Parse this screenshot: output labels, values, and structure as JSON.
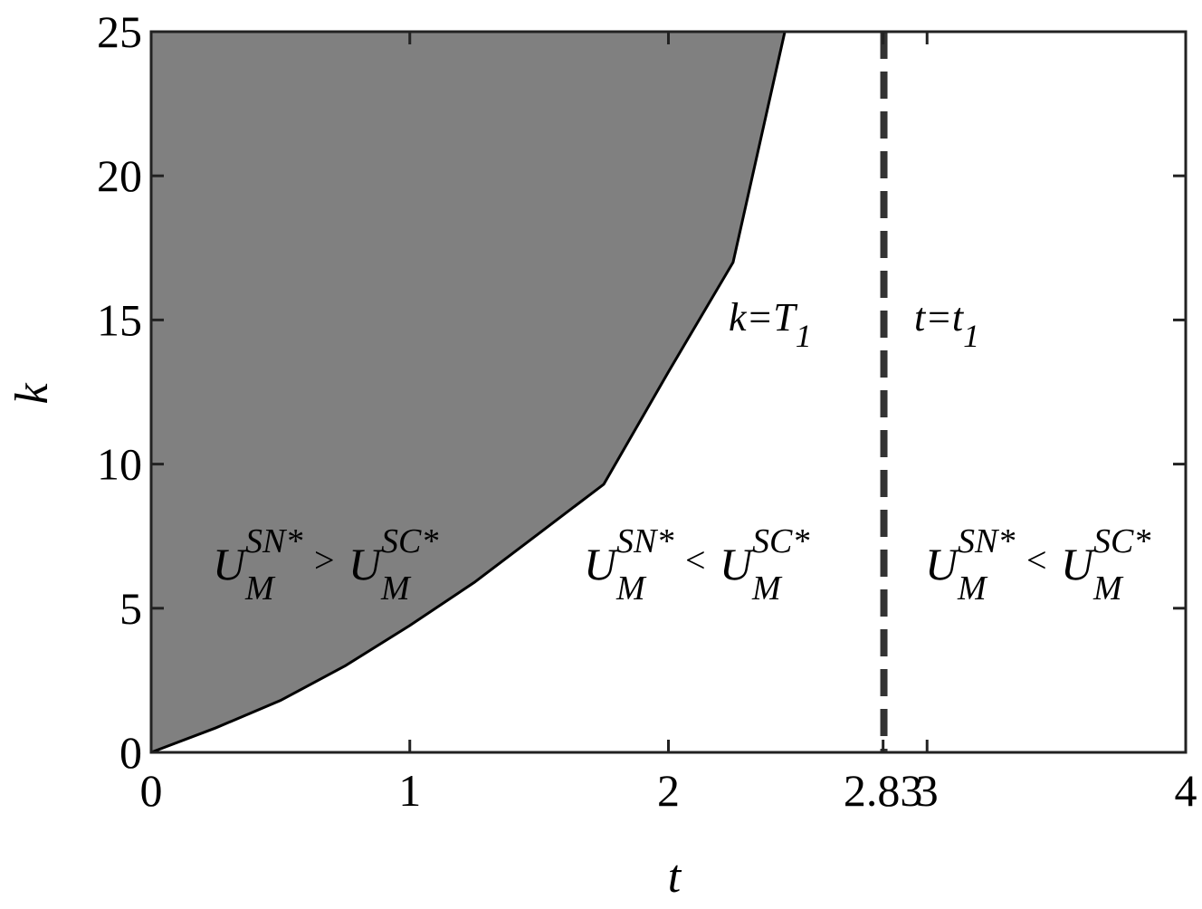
{
  "chart_data": {
    "type": "area",
    "xlabel": "t",
    "ylabel": "k",
    "xlim": [
      0,
      4
    ],
    "ylim": [
      0,
      25
    ],
    "xticks": [
      0,
      1,
      2,
      2.83,
      3,
      4
    ],
    "yticks": [
      0,
      5,
      10,
      15,
      20,
      25
    ],
    "series": [
      {
        "name": "k=T1",
        "color": "#808080",
        "line_color": "#000000",
        "x": [
          0,
          0.25,
          0.5,
          0.75,
          1,
          1.25,
          1.5,
          1.75,
          2,
          2.25,
          2.45
        ],
        "values": [
          0,
          0.85,
          1.8,
          3.0,
          4.4,
          5.9,
          7.6,
          9.3,
          13.2,
          17.0,
          25
        ]
      }
    ],
    "vertical_line": {
      "x": 2.833,
      "color": "#333333",
      "dashed": true
    },
    "annotations": [
      {
        "text": "k=T",
        "sub": "1"
      },
      {
        "text": "t=t",
        "sub": "1"
      }
    ],
    "region_labels": [
      {
        "left": {
          "base": "U",
          "sup": "SN*",
          "sub": "M"
        },
        "relation": ">",
        "right": {
          "base": "U",
          "sup": "SC*",
          "sub": "M"
        }
      },
      {
        "left": {
          "base": "U",
          "sup": "SN*",
          "sub": "M"
        },
        "relation": "<",
        "right": {
          "base": "U",
          "sup": "SC*",
          "sub": "M"
        }
      },
      {
        "left": {
          "base": "U",
          "sup": "SN*",
          "sub": "M"
        },
        "relation": "<",
        "right": {
          "base": "U",
          "sup": "SC*",
          "sub": "M"
        }
      }
    ]
  }
}
